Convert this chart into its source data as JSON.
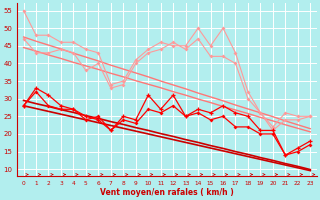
{
  "xlabel": "Vent moyen/en rafales ( km/h )",
  "xlim": [
    -0.5,
    23.5
  ],
  "ylim": [
    8,
    57
  ],
  "yticks": [
    10,
    15,
    20,
    25,
    30,
    35,
    40,
    45,
    50,
    55
  ],
  "xticks": [
    0,
    1,
    2,
    3,
    4,
    5,
    6,
    7,
    8,
    9,
    10,
    11,
    12,
    13,
    14,
    15,
    16,
    17,
    18,
    19,
    20,
    21,
    22,
    23
  ],
  "bg_color": "#b2eeee",
  "grid_color": "#ffffff",
  "line_pink_upper": [
    55,
    48,
    48,
    46,
    46,
    44,
    43,
    34,
    35,
    41,
    44,
    46,
    45,
    45,
    50,
    45,
    50,
    43,
    32,
    26,
    22,
    26,
    25,
    25
  ],
  "line_pink_lower": [
    47,
    43,
    43,
    44,
    43,
    38,
    40,
    33,
    34,
    40,
    43,
    44,
    46,
    44,
    47,
    42,
    42,
    40,
    30,
    26,
    21,
    24,
    24,
    25
  ],
  "trend_pink_upper": [
    47.5,
    46.3,
    45.2,
    44.1,
    42.9,
    41.8,
    40.7,
    39.5,
    38.4,
    37.3,
    36.2,
    35.0,
    33.9,
    32.8,
    31.6,
    30.5,
    29.4,
    28.2,
    27.1,
    26.0,
    24.9,
    23.7,
    22.6,
    21.5
  ],
  "trend_pink_lower": [
    44.5,
    43.5,
    42.4,
    41.4,
    40.3,
    39.3,
    38.3,
    37.2,
    36.2,
    35.1,
    34.1,
    33.1,
    32.0,
    31.0,
    29.9,
    28.9,
    27.8,
    26.8,
    25.8,
    24.7,
    23.7,
    22.6,
    21.6,
    20.6
  ],
  "line_red_upper": [
    28,
    33,
    31,
    28,
    27,
    25,
    24,
    21,
    25,
    24,
    31,
    27,
    31,
    25,
    27,
    26,
    28,
    26,
    25,
    21,
    21,
    14,
    16,
    18
  ],
  "line_red_lower": [
    28,
    32,
    28,
    27,
    27,
    24,
    25,
    21,
    24,
    23,
    27,
    26,
    28,
    25,
    26,
    24,
    25,
    22,
    22,
    20,
    20,
    14,
    15,
    17
  ],
  "trend_red_upper": [
    29.5,
    28.6,
    27.8,
    26.9,
    26.1,
    25.2,
    24.4,
    23.5,
    22.7,
    21.8,
    21.0,
    20.1,
    19.3,
    18.4,
    17.6,
    16.7,
    15.9,
    15.0,
    14.2,
    13.3,
    12.5,
    11.6,
    10.8,
    9.9
  ],
  "trend_red_lower": [
    28.0,
    27.2,
    26.4,
    25.6,
    24.8,
    24.0,
    23.2,
    22.4,
    21.6,
    20.8,
    20.0,
    19.2,
    18.4,
    17.6,
    16.8,
    16.0,
    15.2,
    14.4,
    13.6,
    12.8,
    12.0,
    11.2,
    10.4,
    9.6
  ],
  "x_vals": [
    0,
    1,
    2,
    3,
    4,
    5,
    6,
    7,
    8,
    9,
    10,
    11,
    12,
    13,
    14,
    15,
    16,
    17,
    18,
    19,
    20,
    21,
    22,
    23
  ],
  "pink_light": "#ff9999",
  "pink_med": "#ff7777",
  "red_bright": "#ff0000",
  "red_dark": "#cc0000",
  "tick_color": "#cc0000",
  "spine_color": "#cc0000",
  "xlabel_color": "#cc0000",
  "arrow_color": "#cc0000"
}
